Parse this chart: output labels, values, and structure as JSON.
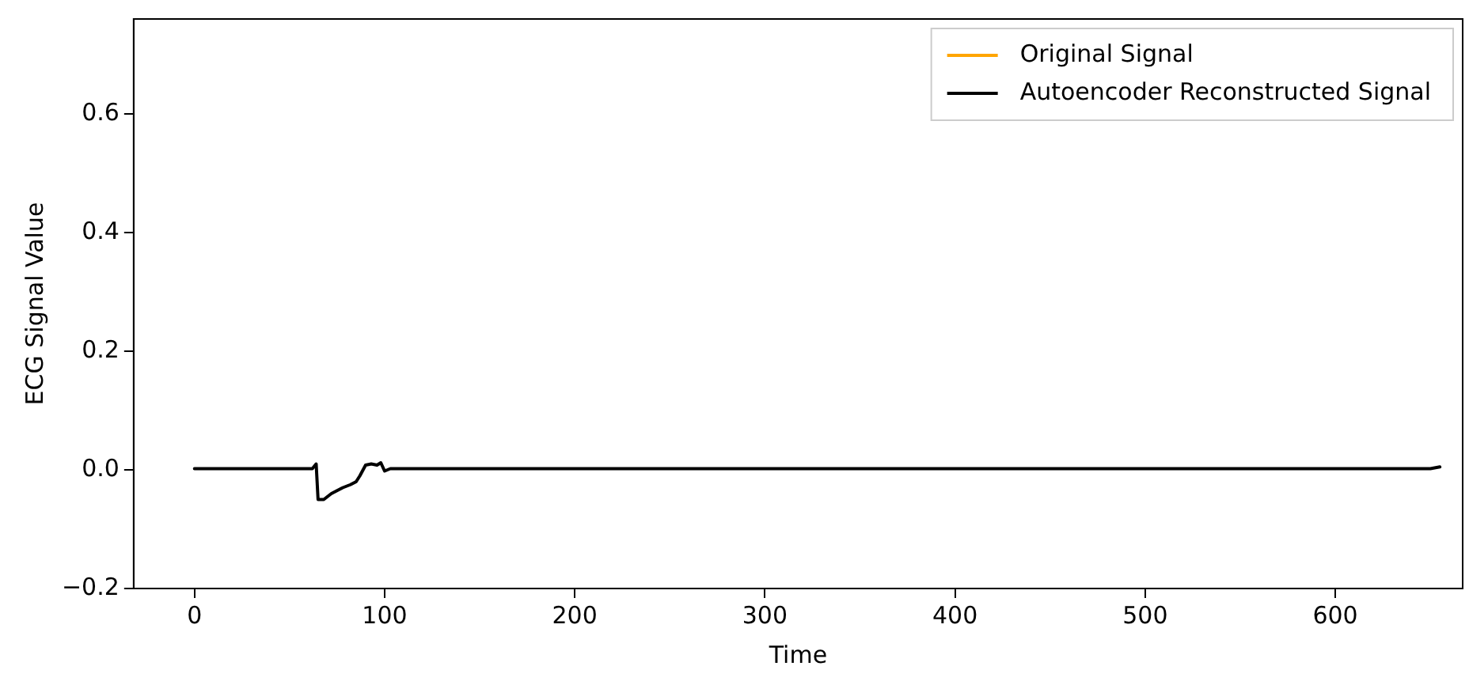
{
  "chart_data": {
    "type": "line",
    "xlabel": "Time",
    "ylabel": "ECG Signal Value",
    "x": [
      0,
      20,
      40,
      62,
      64,
      65,
      68,
      72,
      75,
      78,
      82,
      85,
      87,
      90,
      93,
      96,
      98,
      100,
      103,
      200,
      300,
      400,
      500,
      600,
      650,
      655
    ],
    "series": [
      {
        "name": "Original Signal",
        "color": "#ffa500",
        "values": [
          null,
          null,
          null,
          null,
          null,
          null,
          null,
          null,
          null,
          null,
          null,
          null,
          null,
          null,
          null,
          null,
          null,
          null,
          null,
          null,
          null,
          null,
          null,
          null,
          null,
          null
        ]
      },
      {
        "name": "Autoencoder Reconstructed Signal",
        "color": "#000000",
        "values": [
          0.002,
          0.002,
          0.002,
          0.002,
          0.01,
          -0.05,
          -0.05,
          -0.04,
          -0.035,
          -0.03,
          -0.025,
          -0.02,
          -0.01,
          0.008,
          0.01,
          0.008,
          0.012,
          -0.002,
          0.002,
          0.002,
          0.002,
          0.002,
          0.002,
          0.002,
          0.002,
          0.005
        ]
      }
    ],
    "xlim": [
      -32,
      667
    ],
    "xticks": [
      0,
      100,
      200,
      300,
      400,
      500,
      600
    ],
    "ylim": [
      -0.2,
      0.76
    ],
    "yticks": [
      -0.2,
      {
        "value": 0,
        "label": "0.0"
      },
      0.2,
      0.4,
      0.6
    ],
    "grid": false,
    "legend": "top right",
    "marker": "none",
    "line_style": "solid"
  }
}
